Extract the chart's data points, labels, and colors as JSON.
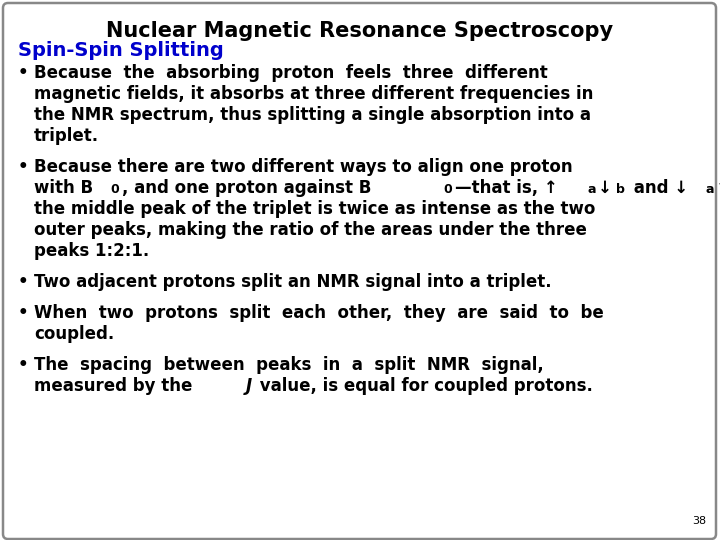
{
  "title": "Nuclear Magnetic Resonance Spectroscopy",
  "subtitle": "Spin-Spin Splitting",
  "subtitle_color": "#0000CC",
  "background_color": "#ffffff",
  "border_color": "#888888",
  "title_fontsize": 15,
  "subtitle_fontsize": 14,
  "body_fontsize": 12,
  "page_number": "38",
  "b1_lines": [
    "Because  the  absorbing  proton  feels  three  different",
    "magnetic fields, it absorbs at three different frequencies in",
    "the NMR spectrum, thus splitting a single absorption into a",
    "triplet."
  ],
  "b2_line1": "Because there are two different ways to align one proton",
  "b2_line3": "the middle peak of the triplet is twice as intense as the two",
  "b2_line4": "outer peaks, making the ratio of the areas under the three",
  "b2_line5": "peaks 1:2:1.",
  "b3_line": "Two adjacent protons split an NMR signal into a triplet.",
  "b4_line1": "When  two  protons  split  each  other,  they  are  said  to  be",
  "b4_line2": "coupled.",
  "b5_line1": "The  spacing  between  peaks  in  a  split  NMR  signal,",
  "b5_line2a": "measured by the ",
  "b5_line2b": "J",
  "b5_line2c": " value, is equal for coupled protons."
}
